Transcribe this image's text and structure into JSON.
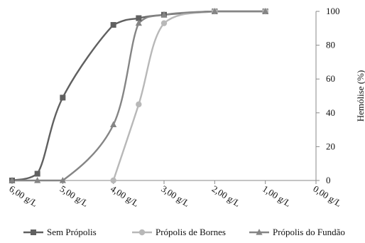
{
  "chart_data": {
    "type": "line",
    "x_axis": {
      "label": "",
      "reversed": true,
      "range": [
        0,
        6
      ],
      "ticks": [
        6,
        5,
        4,
        3,
        2,
        1,
        0
      ],
      "tick_labels": [
        "6,00 g/L",
        "5,00 g/L",
        "4,00 g/L",
        "3,00 g/L",
        "2,00 g/L",
        "1,00 g/L",
        "0,00 g/L"
      ]
    },
    "y_axis": {
      "label": "Hemólise (%)",
      "position": "right",
      "range": [
        0,
        100
      ],
      "ticks": [
        0,
        20,
        40,
        60,
        80,
        100
      ],
      "tick_labels": [
        "0",
        "20",
        "40",
        "60",
        "80",
        "100"
      ]
    },
    "grid": false,
    "legend_position": "bottom",
    "series": [
      {
        "name": "Sem Própolis",
        "color": "#606060",
        "marker": "square",
        "points": [
          [
            6.0,
            0
          ],
          [
            5.5,
            4
          ],
          [
            5.0,
            49
          ],
          [
            4.0,
            92
          ],
          [
            3.5,
            96
          ],
          [
            3.0,
            98
          ],
          [
            2.0,
            100
          ],
          [
            1.0,
            100
          ]
        ]
      },
      {
        "name": "Própolis de Bornes",
        "color": "#b8b8b8",
        "marker": "circle",
        "points": [
          [
            4.0,
            0
          ],
          [
            3.5,
            45
          ],
          [
            3.0,
            93
          ],
          [
            2.0,
            100
          ],
          [
            1.0,
            100
          ]
        ]
      },
      {
        "name": "Própolis do Fundão",
        "color": "#858585",
        "marker": "triangle",
        "points": [
          [
            6.0,
            0
          ],
          [
            5.5,
            0
          ],
          [
            5.0,
            0
          ],
          [
            4.0,
            33
          ],
          [
            3.5,
            93
          ],
          [
            3.0,
            98
          ],
          [
            2.0,
            100
          ],
          [
            1.0,
            100
          ]
        ]
      }
    ]
  }
}
